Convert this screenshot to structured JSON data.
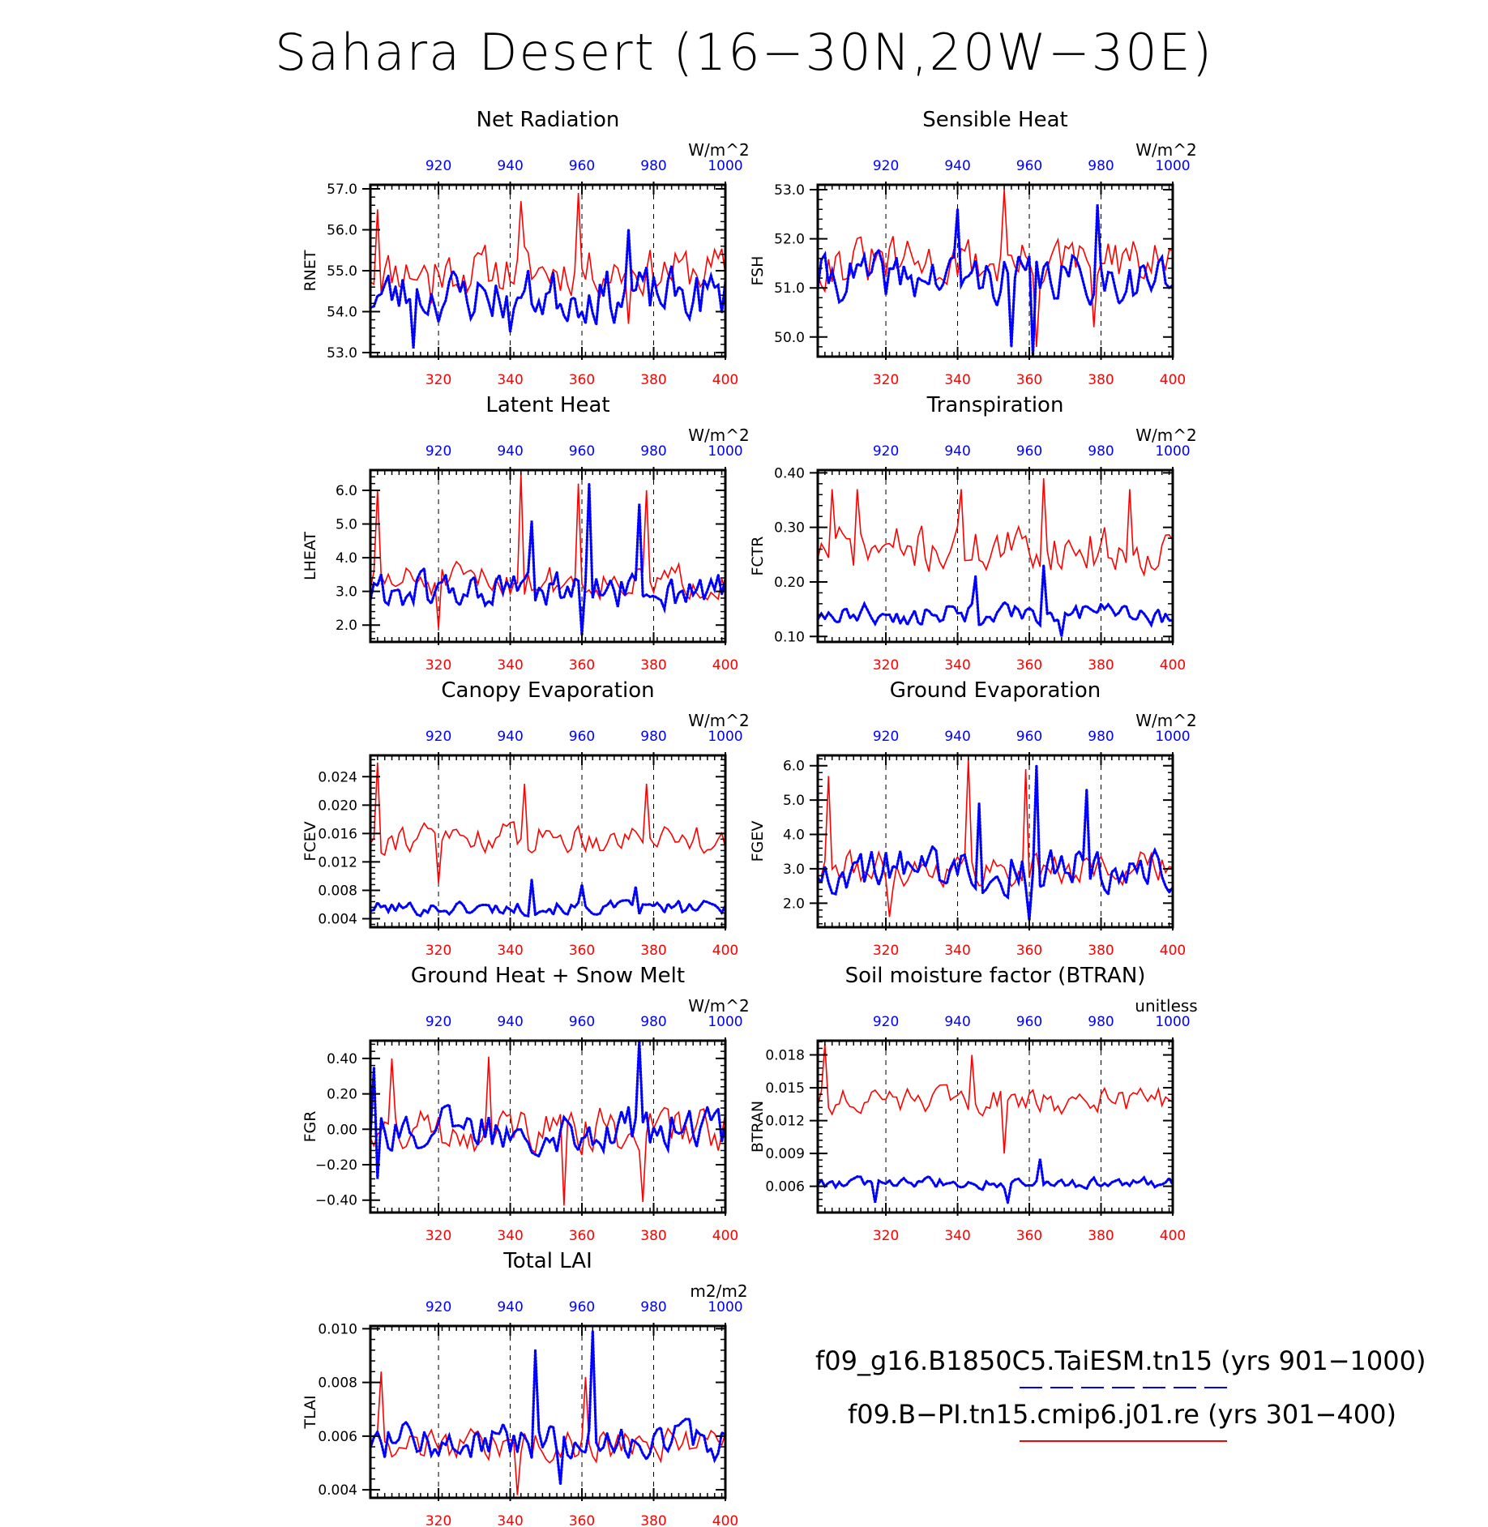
{
  "title": "Sahara Desert (16−30N,20W−30E)",
  "legend": {
    "run1": {
      "label": "f09_g16.B1850C5.TaiESM.tn15 (yrs 901−1000)",
      "color": "#0000ff",
      "style": "dashed"
    },
    "run2": {
      "label": "f09.B−PI.tn15.cmip6.j01.re (yrs 301−400)",
      "color": "#ff0000",
      "style": "solid"
    }
  },
  "colors": {
    "bottom_axis": "#ff0000",
    "top_axis": "#0000ff",
    "ref_line": "#000000"
  },
  "chart_data": [
    {
      "type": "line",
      "title": "Net Radiation",
      "ylabel": "RNET",
      "units": "W/m^2",
      "ylim": [
        52.9,
        57.1
      ],
      "yticks": [
        53.0,
        54.0,
        55.0,
        56.0,
        57.0
      ],
      "ytick_labels": [
        "53.0",
        "54.0",
        "55.0",
        "56.0",
        "57.0"
      ],
      "xlim_bottom": [
        301,
        400
      ],
      "xticks_bottom": [
        320,
        340,
        360,
        380,
        400
      ],
      "xlim_top": [
        901,
        1000
      ],
      "xticks_top": [
        920,
        940,
        960,
        980,
        1000
      ],
      "series": [
        {
          "name": "f09.B−PI.tn15.cmip6.j01.re (yrs 301−400)",
          "color": "#ff0000",
          "axis": "bottom",
          "mean": 55.0,
          "amp": 0.7,
          "seed": 11,
          "spikes": [
            [
              303,
              56.5
            ],
            [
              318,
              54.2
            ],
            [
              343,
              56.7
            ],
            [
              359,
              56.9
            ],
            [
              373,
              53.7
            ]
          ]
        },
        {
          "name": "f09_g16.B1850C5.TaiESM.tn15 (yrs 901−1000)",
          "color": "#0000ff",
          "axis": "top",
          "mean": 54.4,
          "amp": 0.8,
          "seed": 23,
          "spikes": [
            [
              913,
              53.1
            ],
            [
              940,
              53.5
            ],
            [
              955,
              53.9
            ],
            [
              973,
              56.0
            ]
          ]
        }
      ]
    },
    {
      "type": "line",
      "title": "Sensible Heat",
      "ylabel": "FSH",
      "units": "W/m^2",
      "ylim": [
        49.6,
        53.1
      ],
      "yticks": [
        50.0,
        51.0,
        52.0,
        53.0
      ],
      "ytick_labels": [
        "50.0",
        "51.0",
        "52.0",
        "53.0"
      ],
      "xlim_bottom": [
        301,
        400
      ],
      "xticks_bottom": [
        320,
        340,
        360,
        380,
        400
      ],
      "xlim_top": [
        901,
        1000
      ],
      "xticks_top": [
        920,
        940,
        960,
        980,
        1000
      ],
      "series": [
        {
          "name": "f09.B−PI.tn15.cmip6.j01.re (yrs 301−400)",
          "color": "#ff0000",
          "axis": "bottom",
          "mean": 51.5,
          "amp": 0.6,
          "seed": 31,
          "spikes": [
            [
              353,
              53.0
            ],
            [
              362,
              49.8
            ],
            [
              378,
              50.2
            ]
          ]
        },
        {
          "name": "f09_g16.B1850C5.TaiESM.tn15 (yrs 901−1000)",
          "color": "#0000ff",
          "axis": "top",
          "mean": 51.2,
          "amp": 0.6,
          "seed": 41,
          "spikes": [
            [
              940,
              52.6
            ],
            [
              961,
              49.5
            ],
            [
              979,
              52.7
            ],
            [
              955,
              49.8
            ]
          ]
        }
      ]
    },
    {
      "type": "line",
      "title": "Latent Heat",
      "ylabel": "LHEAT",
      "units": "W/m^2",
      "ylim": [
        1.5,
        6.6
      ],
      "yticks": [
        2.0,
        3.0,
        4.0,
        5.0,
        6.0
      ],
      "ytick_labels": [
        "2.0",
        "3.0",
        "4.0",
        "5.0",
        "6.0"
      ],
      "xlim_bottom": [
        301,
        400
      ],
      "xticks_bottom": [
        320,
        340,
        360,
        380,
        400
      ],
      "xlim_top": [
        901,
        1000
      ],
      "xticks_top": [
        920,
        940,
        960,
        980,
        1000
      ],
      "series": [
        {
          "name": "f09.B−PI.tn15.cmip6.j01.re (yrs 301−400)",
          "color": "#ff0000",
          "axis": "bottom",
          "mean": 3.3,
          "amp": 0.6,
          "seed": 51,
          "spikes": [
            [
              303,
              6.0
            ],
            [
              343,
              6.5
            ],
            [
              359,
              6.2
            ],
            [
              378,
              6.0
            ],
            [
              320,
              1.9
            ]
          ]
        },
        {
          "name": "f09_g16.B1850C5.TaiESM.tn15 (yrs 901−1000)",
          "color": "#0000ff",
          "axis": "top",
          "mean": 3.0,
          "amp": 0.7,
          "seed": 61,
          "spikes": [
            [
              962,
              6.2
            ],
            [
              976,
              5.6
            ],
            [
              946,
              5.1
            ],
            [
              960,
              1.7
            ]
          ]
        }
      ]
    },
    {
      "type": "line",
      "title": "Transpiration",
      "ylabel": "FCTR",
      "units": "W/m^2",
      "ylim": [
        0.09,
        0.405
      ],
      "yticks": [
        0.1,
        0.2,
        0.3,
        0.4
      ],
      "ytick_labels": [
        "0.10",
        "0.20",
        "0.30",
        "0.40"
      ],
      "xlim_bottom": [
        301,
        400
      ],
      "xticks_bottom": [
        320,
        340,
        360,
        380,
        400
      ],
      "xlim_top": [
        901,
        1000
      ],
      "xticks_top": [
        920,
        940,
        960,
        980,
        1000
      ],
      "series": [
        {
          "name": "f09.B−PI.tn15.cmip6.j01.re (yrs 301−400)",
          "color": "#ff0000",
          "axis": "bottom",
          "mean": 0.26,
          "amp": 0.05,
          "seed": 71,
          "spikes": [
            [
              305,
              0.37
            ],
            [
              312,
              0.37
            ],
            [
              364,
              0.39
            ],
            [
              388,
              0.37
            ],
            [
              341,
              0.37
            ]
          ]
        },
        {
          "name": "f09_g16.B1850C5.TaiESM.tn15 (yrs 901−1000)",
          "color": "#0000ff",
          "axis": "top",
          "mean": 0.14,
          "amp": 0.025,
          "seed": 81,
          "spikes": [
            [
              964,
              0.23
            ],
            [
              945,
              0.21
            ],
            [
              969,
              0.1
            ]
          ]
        }
      ]
    },
    {
      "type": "line",
      "title": "Canopy Evaporation",
      "ylabel": "FCEV",
      "units": "W/m^2",
      "ylim": [
        0.0028,
        0.027
      ],
      "yticks": [
        0.004,
        0.008,
        0.012,
        0.016,
        0.02,
        0.024
      ],
      "ytick_labels": [
        "0.004",
        "0.008",
        "0.012",
        "0.016",
        "0.020",
        "0.024"
      ],
      "xlim_bottom": [
        301,
        400
      ],
      "xticks_bottom": [
        320,
        340,
        360,
        380,
        400
      ],
      "xlim_top": [
        901,
        1000
      ],
      "xticks_top": [
        920,
        940,
        960,
        980,
        1000
      ],
      "series": [
        {
          "name": "f09.B−PI.tn15.cmip6.j01.re (yrs 301−400)",
          "color": "#ff0000",
          "axis": "bottom",
          "mean": 0.0155,
          "amp": 0.0025,
          "seed": 91,
          "spikes": [
            [
              303,
              0.026
            ],
            [
              344,
              0.023
            ],
            [
              378,
              0.023
            ],
            [
              320,
              0.009
            ]
          ]
        },
        {
          "name": "f09_g16.B1850C5.TaiESM.tn15 (yrs 901−1000)",
          "color": "#0000ff",
          "axis": "top",
          "mean": 0.0055,
          "amp": 0.0012,
          "seed": 101,
          "spikes": [
            [
              946,
              0.0095
            ],
            [
              960,
              0.0088
            ],
            [
              975,
              0.0085
            ]
          ]
        }
      ]
    },
    {
      "type": "line",
      "title": "Ground Evaporation",
      "ylabel": "FGEV",
      "units": "W/m^2",
      "ylim": [
        1.3,
        6.3
      ],
      "yticks": [
        2.0,
        3.0,
        4.0,
        5.0,
        6.0
      ],
      "ytick_labels": [
        "2.0",
        "3.0",
        "4.0",
        "5.0",
        "6.0"
      ],
      "xlim_bottom": [
        301,
        400
      ],
      "xticks_bottom": [
        320,
        340,
        360,
        380,
        400
      ],
      "xlim_top": [
        901,
        1000
      ],
      "xticks_top": [
        920,
        940,
        960,
        980,
        1000
      ],
      "series": [
        {
          "name": "f09.B−PI.tn15.cmip6.j01.re (yrs 301−400)",
          "color": "#ff0000",
          "axis": "bottom",
          "mean": 3.0,
          "amp": 0.6,
          "seed": 111,
          "spikes": [
            [
              304,
              5.7
            ],
            [
              343,
              6.2
            ],
            [
              359,
              5.9
            ],
            [
              321,
              1.6
            ]
          ]
        },
        {
          "name": "f09_g16.B1850C5.TaiESM.tn15 (yrs 901−1000)",
          "color": "#0000ff",
          "axis": "top",
          "mean": 3.0,
          "amp": 0.8,
          "seed": 121,
          "spikes": [
            [
              962,
              6.0
            ],
            [
              946,
              4.9
            ],
            [
              976,
              5.3
            ],
            [
              960,
              1.5
            ]
          ]
        }
      ]
    },
    {
      "type": "line",
      "title": "Ground Heat + Snow Melt",
      "ylabel": "FGR",
      "units": "W/m^2",
      "ylim": [
        -0.47,
        0.5
      ],
      "yticks": [
        -0.4,
        -0.2,
        0.0,
        0.2,
        0.4
      ],
      "ytick_labels": [
        "−0.40",
        "−0.20",
        "0.00",
        "0.20",
        "0.40"
      ],
      "xlim_bottom": [
        301,
        400
      ],
      "xticks_bottom": [
        320,
        340,
        360,
        380,
        400
      ],
      "xlim_top": [
        901,
        1000
      ],
      "xticks_top": [
        920,
        940,
        960,
        980,
        1000
      ],
      "series": [
        {
          "name": "f09.B−PI.tn15.cmip6.j01.re (yrs 301−400)",
          "color": "#ff0000",
          "axis": "bottom",
          "mean": 0.0,
          "amp": 0.15,
          "seed": 131,
          "spikes": [
            [
              334,
              0.41
            ],
            [
              355,
              -0.43
            ],
            [
              377,
              -0.41
            ],
            [
              307,
              0.4
            ]
          ]
        },
        {
          "name": "f09_g16.B1850C5.TaiESM.tn15 (yrs 901−1000)",
          "color": "#0000ff",
          "axis": "top",
          "mean": 0.0,
          "amp": 0.15,
          "seed": 141,
          "spikes": [
            [
              976,
              0.5
            ],
            [
              903,
              -0.28
            ],
            [
              902,
              0.35
            ]
          ]
        }
      ]
    },
    {
      "type": "line",
      "title": "Soil moisture factor (BTRAN)",
      "ylabel": "BTRAN",
      "units": "unitless",
      "ylim": [
        0.0036,
        0.0193
      ],
      "yticks": [
        0.006,
        0.009,
        0.012,
        0.015,
        0.018
      ],
      "ytick_labels": [
        "0.006",
        "0.009",
        "0.012",
        "0.015",
        "0.018"
      ],
      "xlim_bottom": [
        301,
        400
      ],
      "xticks_bottom": [
        320,
        340,
        360,
        380,
        400
      ],
      "xlim_top": [
        901,
        1000
      ],
      "xticks_top": [
        920,
        940,
        960,
        980,
        1000
      ],
      "series": [
        {
          "name": "f09.B−PI.tn15.cmip6.j01.re (yrs 301−400)",
          "color": "#ff0000",
          "axis": "bottom",
          "mean": 0.0138,
          "amp": 0.0014,
          "seed": 151,
          "spikes": [
            [
              303,
              0.019
            ],
            [
              344,
              0.018
            ],
            [
              353,
              0.009
            ]
          ]
        },
        {
          "name": "f09_g16.B1850C5.TaiESM.tn15 (yrs 901−1000)",
          "color": "#0000ff",
          "axis": "top",
          "mean": 0.0063,
          "amp": 0.0006,
          "seed": 161,
          "spikes": [
            [
              963,
              0.0085
            ],
            [
              954,
              0.0045
            ],
            [
              917,
              0.0045
            ]
          ]
        }
      ]
    },
    {
      "type": "line",
      "title": "Total LAI",
      "ylabel": "TLAI",
      "units": "m2/m2",
      "ylim": [
        0.0037,
        0.0101
      ],
      "yticks": [
        0.004,
        0.006,
        0.008,
        0.01
      ],
      "ytick_labels": [
        "0.004",
        "0.006",
        "0.008",
        "0.010"
      ],
      "xlim_bottom": [
        301,
        400
      ],
      "xticks_bottom": [
        320,
        340,
        360,
        380,
        400
      ],
      "xlim_top": [
        901,
        1000
      ],
      "xticks_top": [
        920,
        940,
        960,
        980,
        1000
      ],
      "series": [
        {
          "name": "f09.B−PI.tn15.cmip6.j01.re (yrs 301−400)",
          "color": "#ff0000",
          "axis": "bottom",
          "mean": 0.0057,
          "amp": 0.0007,
          "seed": 171,
          "spikes": [
            [
              304,
              0.0084
            ],
            [
              361,
              0.0082
            ],
            [
              342,
              0.0038
            ]
          ]
        },
        {
          "name": "f09_g16.B1850C5.TaiESM.tn15 (yrs 901−1000)",
          "color": "#0000ff",
          "axis": "top",
          "mean": 0.0058,
          "amp": 0.0008,
          "seed": 181,
          "spikes": [
            [
              963,
              0.0099
            ],
            [
              947,
              0.0092
            ],
            [
              954,
              0.0042
            ]
          ]
        }
      ]
    }
  ]
}
